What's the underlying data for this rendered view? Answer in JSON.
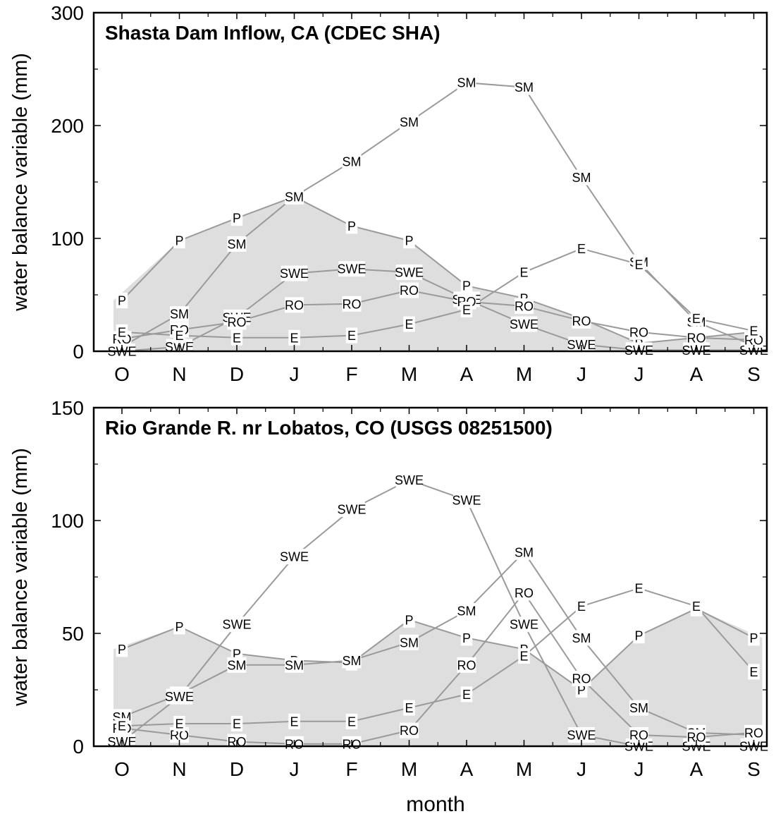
{
  "chart_data": [
    {
      "type": "line",
      "title": "Shasta Dam Inflow, CA (CDEC SHA)",
      "ylabel": "water balance variable (mm)",
      "xlabel": "",
      "categories": [
        "O",
        "N",
        "D",
        "J",
        "F",
        "M",
        "A",
        "M",
        "J",
        "J",
        "A",
        "S"
      ],
      "ylim": [
        0,
        300
      ],
      "yticks": [
        0,
        100,
        200,
        300
      ],
      "shaded_series": "P",
      "series": [
        {
          "name": "P",
          "values": [
            45,
            98,
            118,
            137,
            111,
            98,
            58,
            47,
            29,
            7,
            12,
            17
          ]
        },
        {
          "name": "SM",
          "values": [
            4,
            33,
            95,
            137,
            168,
            203,
            238,
            234,
            154,
            79,
            26,
            5
          ]
        },
        {
          "name": "SWE",
          "values": [
            0,
            4,
            30,
            69,
            73,
            70,
            46,
            24,
            6,
            1,
            1,
            1
          ]
        },
        {
          "name": "RO",
          "values": [
            11,
            19,
            26,
            41,
            42,
            54,
            44,
            40,
            27,
            17,
            12,
            10
          ]
        },
        {
          "name": "E",
          "values": [
            17,
            14,
            12,
            12,
            14,
            24,
            37,
            70,
            91,
            77,
            29,
            18
          ]
        }
      ]
    },
    {
      "type": "line",
      "title": "Rio Grande R. nr Lobatos, CO (USGS 08251500)",
      "ylabel": "water balance variable (mm)",
      "xlabel": "month",
      "categories": [
        "O",
        "N",
        "D",
        "J",
        "F",
        "M",
        "A",
        "M",
        "J",
        "J",
        "A",
        "S"
      ],
      "ylim": [
        0,
        150
      ],
      "yticks": [
        0,
        50,
        100,
        150
      ],
      "shaded_series": "P",
      "series": [
        {
          "name": "P",
          "values": [
            43,
            53,
            41,
            38,
            37,
            56,
            48,
            43,
            25,
            49,
            61,
            48
          ]
        },
        {
          "name": "SM",
          "values": [
            13,
            23,
            36,
            36,
            38,
            46,
            60,
            86,
            48,
            17,
            6,
            5
          ]
        },
        {
          "name": "SWE",
          "values": [
            2,
            22,
            54,
            84,
            105,
            118,
            109,
            54,
            5,
            0,
            0,
            0
          ]
        },
        {
          "name": "RO",
          "values": [
            8,
            5,
            2,
            1,
            1,
            7,
            36,
            68,
            30,
            5,
            4,
            6
          ]
        },
        {
          "name": "E",
          "values": [
            9,
            10,
            10,
            11,
            11,
            17,
            23,
            40,
            62,
            70,
            62,
            33
          ]
        }
      ]
    }
  ]
}
